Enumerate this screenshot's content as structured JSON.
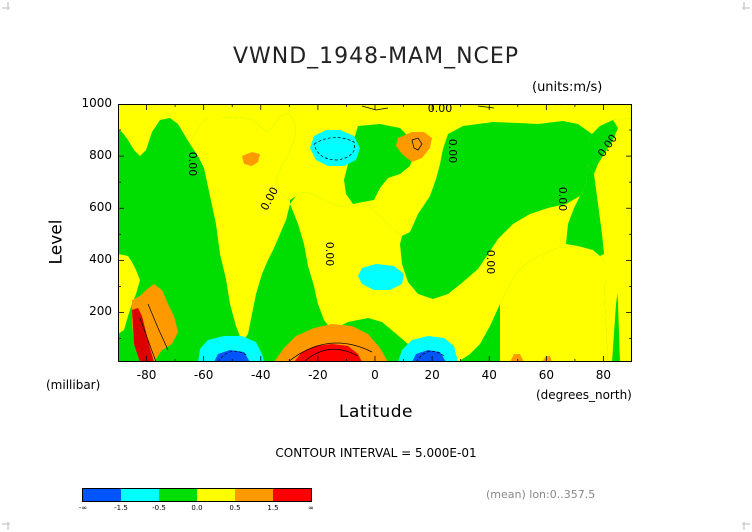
{
  "chart_data": {
    "type": "heatmap",
    "title": "VWND_1948-MAM_NCEP",
    "units_label": "(units:m/s)",
    "xlabel": "Latitude",
    "xunits": "(degrees_north)",
    "ylabel": "Level",
    "yunits": "(millibar)",
    "xlim": [
      -90,
      90
    ],
    "ylim": [
      1000,
      10
    ],
    "x_ticks": [
      "-80",
      "-60",
      "-40",
      "-20",
      "0",
      "20",
      "40",
      "60",
      "80"
    ],
    "x_tick_values": [
      -80,
      -60,
      -40,
      -20,
      0,
      20,
      40,
      60,
      80
    ],
    "y_ticks": [
      "200",
      "400",
      "600",
      "800",
      "1000"
    ],
    "y_tick_values": [
      200,
      400,
      600,
      800,
      1000
    ],
    "contour_interval": "CONTOUR INTERVAL = 5.000E-01",
    "contour_label": "0.00",
    "colorbar": {
      "labels": [
        "-∞",
        "-1.5",
        "-0.5",
        "0.0",
        "0.5",
        "1.5",
        "∞"
      ],
      "colors": [
        "#0055ff",
        "#00ffff",
        "#00dd00",
        "#ffff00",
        "#ff9900",
        "#ff0000"
      ]
    },
    "footer": "(mean) lon:0..357.5"
  }
}
